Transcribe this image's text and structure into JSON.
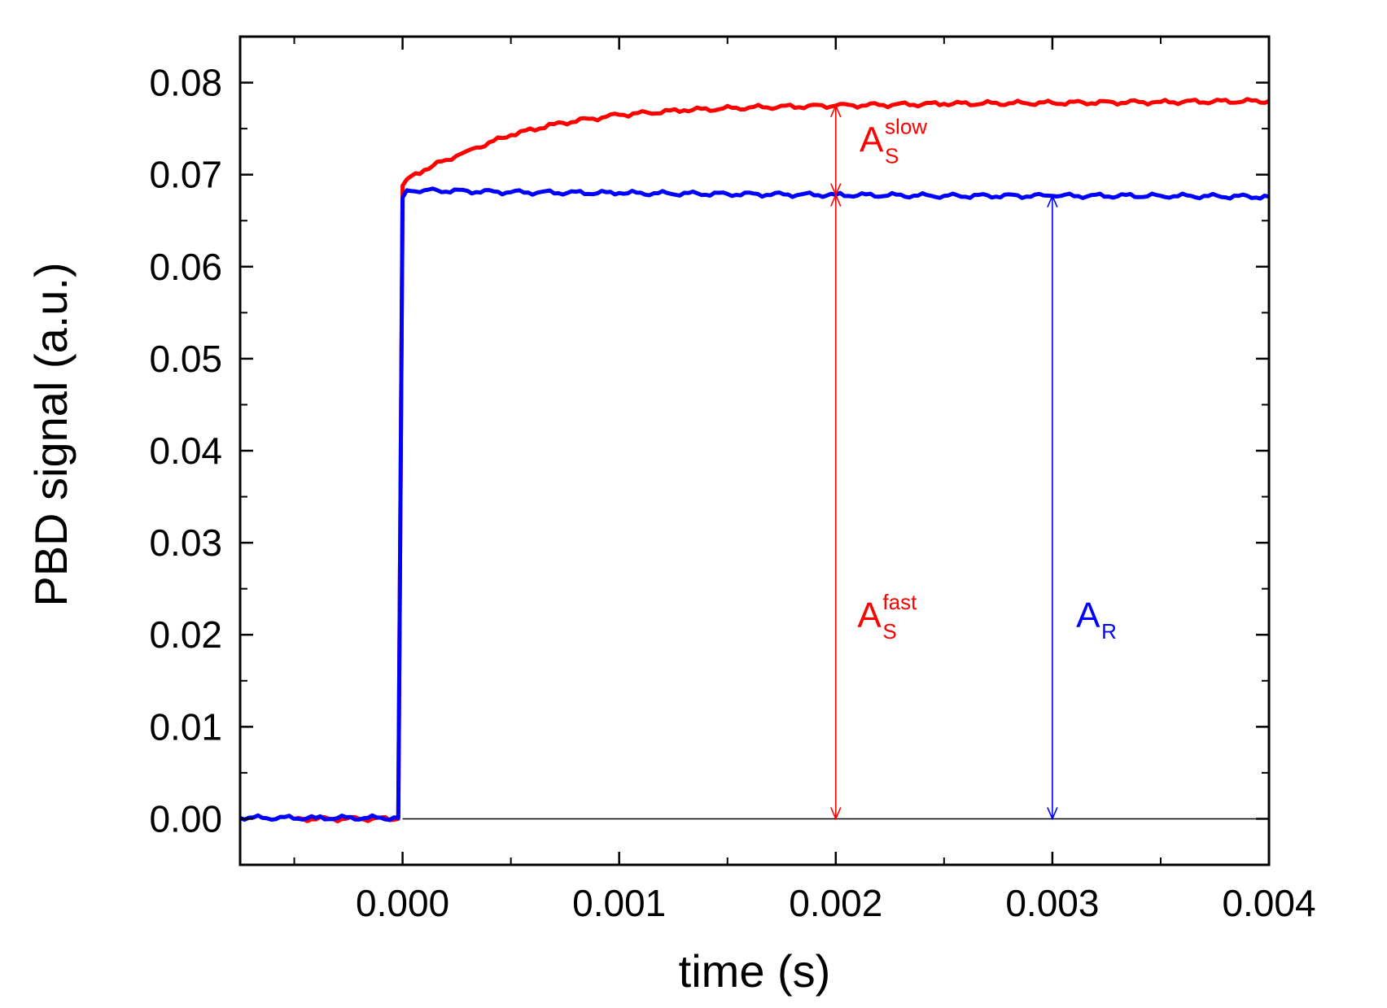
{
  "chart_data": {
    "type": "line",
    "title": "",
    "xlabel": "time (s)",
    "ylabel": "PBD signal (a.u.)",
    "xlim": [
      -0.00075,
      0.004
    ],
    "ylim": [
      -0.005,
      0.085
    ],
    "xticks": [
      0.0,
      0.001,
      0.002,
      0.003,
      0.004
    ],
    "xtick_labels": [
      "0.000",
      "0.001",
      "0.002",
      "0.003",
      "0.004"
    ],
    "yticks": [
      0.0,
      0.01,
      0.02,
      0.03,
      0.04,
      0.05,
      0.06,
      0.07,
      0.08
    ],
    "ytick_labels": [
      "0.00",
      "0.01",
      "0.02",
      "0.03",
      "0.04",
      "0.05",
      "0.06",
      "0.07",
      "0.08"
    ],
    "grid": false,
    "baseline": 0.0,
    "colors": {
      "red": "#ff0000",
      "blue": "#0000ff",
      "axis": "#000000"
    },
    "series": [
      {
        "name": "red",
        "color": "#ff0000",
        "x": [
          -0.0005,
          -0.0002,
          -2e-05,
          0.0,
          2e-05,
          0.0001,
          0.0002,
          0.0003,
          0.0005,
          0.0007,
          0.001,
          0.0013,
          0.0016,
          0.002,
          0.0025,
          0.003,
          0.0035,
          0.004
        ],
        "y": [
          0.0,
          0.0,
          0.0,
          0.0688,
          0.0695,
          0.0705,
          0.0716,
          0.0726,
          0.0743,
          0.0755,
          0.0765,
          0.077,
          0.0773,
          0.0775,
          0.0777,
          0.0778,
          0.0779,
          0.078
        ]
      },
      {
        "name": "blue",
        "color": "#0000ff",
        "x": [
          -0.00075,
          -0.0004,
          -2e-05,
          0.0,
          2e-05,
          0.0001,
          0.0005,
          0.001,
          0.0015,
          0.002,
          0.0025,
          0.003,
          0.0035,
          0.004
        ],
        "y": [
          0.0001,
          0.0001,
          0.0001,
          0.0675,
          0.0683,
          0.0683,
          0.0681,
          0.068,
          0.0679,
          0.0678,
          0.0677,
          0.0677,
          0.0677,
          0.0676
        ]
      }
    ],
    "annotations": [
      {
        "id": "as-slow",
        "label": "A",
        "sub": "S",
        "sup": "slow",
        "color": "#ff0000",
        "arrow_x": 0.002,
        "arrow_from": 0.0678,
        "arrow_to": 0.0775,
        "label_x": 0.00211,
        "label_y": 0.0725
      },
      {
        "id": "as-fast",
        "label": "A",
        "sub": "S",
        "sup": "fast",
        "color": "#ff0000",
        "arrow_x": 0.002,
        "arrow_from": 0.0,
        "arrow_to": 0.0678,
        "label_x": 0.0021,
        "label_y": 0.0208
      },
      {
        "id": "a-r",
        "label": "A",
        "sub": "R",
        "sup": "",
        "color": "#0000ff",
        "arrow_x": 0.003,
        "arrow_from": 0.0,
        "arrow_to": 0.0677,
        "label_x": 0.00311,
        "label_y": 0.0208
      }
    ]
  }
}
